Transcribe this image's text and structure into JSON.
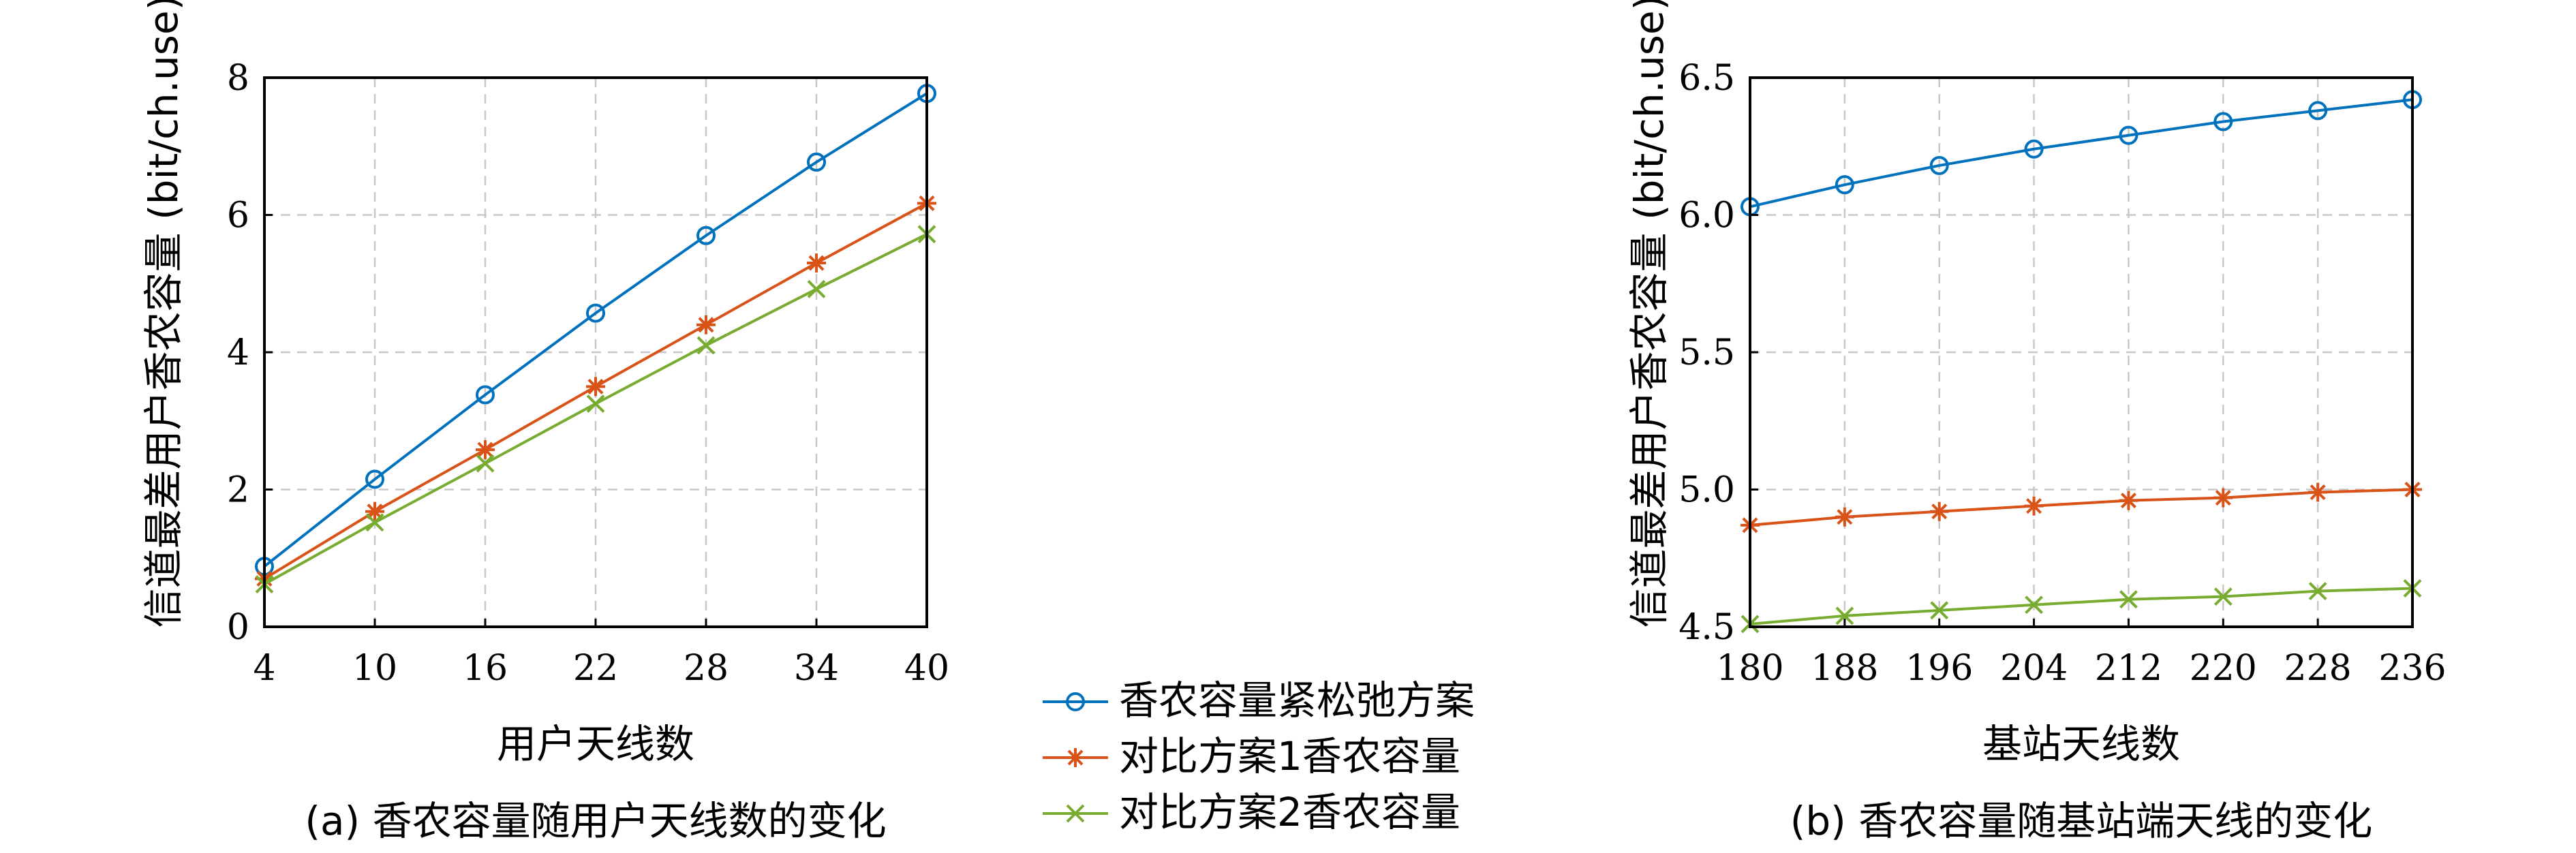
{
  "colors": {
    "relax": "#0072BD",
    "c1": "#D95319",
    "c2": "#77AC30"
  },
  "legend": [
    {
      "label": "香农容量紧松弛方案",
      "marker": "circle",
      "color": "#0072BD"
    },
    {
      "label": "对比方案1香农容量",
      "marker": "star",
      "color": "#D95319"
    },
    {
      "label": "对比方案2香农容量",
      "marker": "x",
      "color": "#77AC30"
    }
  ],
  "chart_data": [
    {
      "type": "line",
      "caption": "(a) 香农容量随用户天线数的变化",
      "xlabel": "用户天线数",
      "ylabel": "信道最差用户香农容量 (bit/ch.use)",
      "x": [
        4,
        10,
        16,
        22,
        28,
        34,
        40
      ],
      "xlim": [
        4,
        40
      ],
      "ylim": [
        0,
        8
      ],
      "xticks": [
        "4",
        "10",
        "16",
        "22",
        "28",
        "34",
        "40"
      ],
      "yticks": [
        "0",
        "2",
        "4",
        "6",
        "8"
      ],
      "grid": true,
      "series": [
        {
          "name": "香农容量紧松弛方案",
          "marker": "circle",
          "values": [
            0.88,
            2.15,
            3.38,
            4.57,
            5.7,
            6.77,
            7.77
          ]
        },
        {
          "name": "对比方案1香农容量",
          "marker": "star",
          "values": [
            0.7,
            1.68,
            2.58,
            3.5,
            4.4,
            5.3,
            6.17
          ]
        },
        {
          "name": "对比方案2香农容量",
          "marker": "x",
          "values": [
            0.62,
            1.52,
            2.38,
            3.25,
            4.1,
            4.92,
            5.72
          ]
        }
      ]
    },
    {
      "type": "line",
      "caption": "(b) 香农容量随基站端天线的变化",
      "xlabel": "基站天线数",
      "ylabel": "信道最差用户香农容量 (bit/ch.use)",
      "x": [
        180,
        188,
        196,
        204,
        212,
        220,
        228,
        236
      ],
      "xlim": [
        180,
        236
      ],
      "ylim": [
        4.5,
        6.5
      ],
      "xticks": [
        "180",
        "188",
        "196",
        "204",
        "212",
        "220",
        "228",
        "236"
      ],
      "yticks": [
        "4.5",
        "5.0",
        "5.5",
        "6.0",
        "6.5"
      ],
      "grid": true,
      "series": [
        {
          "name": "香农容量紧松弛方案",
          "marker": "circle",
          "values": [
            6.03,
            6.11,
            6.18,
            6.24,
            6.29,
            6.34,
            6.38,
            6.42
          ]
        },
        {
          "name": "对比方案1香农容量",
          "marker": "star",
          "values": [
            4.87,
            4.9,
            4.92,
            4.94,
            4.96,
            4.97,
            4.99,
            5.0
          ]
        },
        {
          "name": "对比方案2香农容量",
          "marker": "x",
          "values": [
            4.51,
            4.54,
            4.56,
            4.58,
            4.6,
            4.61,
            4.63,
            4.64
          ]
        }
      ]
    }
  ]
}
